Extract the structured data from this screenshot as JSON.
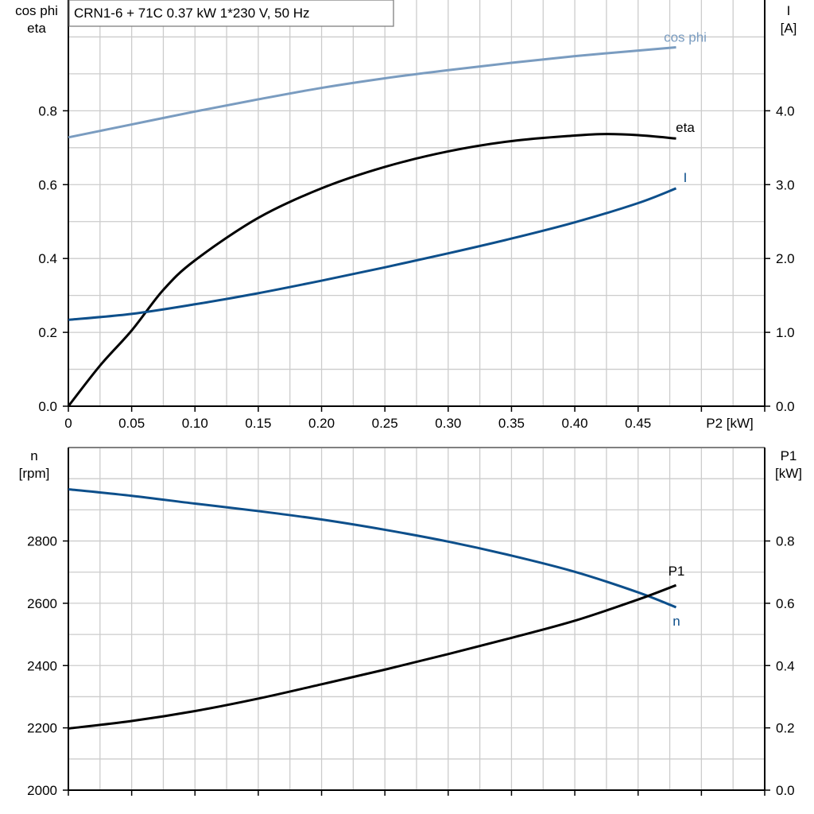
{
  "chart_data": [
    {
      "type": "line",
      "title": "CRN1-6 + 71C   0.37 kW   1*230 V, 50 Hz",
      "xlabel": "P2 [kW]",
      "ylabel_left": [
        "cos phi",
        "eta"
      ],
      "ylabel_right": [
        "I",
        "[A]"
      ],
      "xlim": [
        0,
        0.55
      ],
      "ylim_left": [
        0,
        1.1
      ],
      "ylim_right": [
        0,
        5.5
      ],
      "x_ticks": [
        "0",
        "0.05",
        "0.10",
        "0.15",
        "0.20",
        "0.25",
        "0.30",
        "0.35",
        "0.40",
        "0.45"
      ],
      "y_ticks_left": [
        "0.0",
        "0.2",
        "0.4",
        "0.6",
        "0.8"
      ],
      "y_ticks_right": [
        "0.0",
        "1.0",
        "2.0",
        "3.0",
        "4.0"
      ],
      "grid": true,
      "series": [
        {
          "name": "cos phi",
          "axis": "left",
          "color": "#7a9cc0",
          "x": [
            0,
            0.05,
            0.1,
            0.15,
            0.2,
            0.25,
            0.3,
            0.35,
            0.4,
            0.45,
            0.48
          ],
          "y": [
            0.728,
            0.763,
            0.798,
            0.831,
            0.862,
            0.888,
            0.91,
            0.93,
            0.948,
            0.963,
            0.972
          ]
        },
        {
          "name": "eta",
          "axis": "left",
          "color": "#000000",
          "x": [
            0,
            0.025,
            0.05,
            0.075,
            0.1,
            0.15,
            0.2,
            0.25,
            0.3,
            0.35,
            0.4,
            0.425,
            0.45,
            0.48
          ],
          "y": [
            0,
            0.11,
            0.205,
            0.315,
            0.395,
            0.51,
            0.59,
            0.648,
            0.69,
            0.718,
            0.733,
            0.737,
            0.734,
            0.725
          ]
        },
        {
          "name": "I",
          "axis": "right",
          "color": "#0d4f8b",
          "x": [
            0,
            0.05,
            0.1,
            0.15,
            0.2,
            0.25,
            0.3,
            0.35,
            0.4,
            0.45,
            0.48
          ],
          "y": [
            1.17,
            1.25,
            1.38,
            1.53,
            1.7,
            1.88,
            2.07,
            2.27,
            2.49,
            2.75,
            2.95
          ]
        }
      ]
    },
    {
      "type": "line",
      "xlabel": "",
      "ylabel_left": [
        "n",
        "[rpm]"
      ],
      "ylabel_right": [
        "P1",
        "[kW]"
      ],
      "xlim": [
        0,
        0.55
      ],
      "ylim_left": [
        2000,
        3100
      ],
      "ylim_right": [
        0,
        1.1
      ],
      "y_ticks_left": [
        "2000",
        "2200",
        "2400",
        "2600",
        "2800"
      ],
      "y_ticks_right": [
        "0.0",
        "0.2",
        "0.4",
        "0.6",
        "0.8"
      ],
      "grid": true,
      "series": [
        {
          "name": "n",
          "axis": "left",
          "color": "#0d4f8b",
          "x": [
            0,
            0.05,
            0.1,
            0.15,
            0.2,
            0.25,
            0.3,
            0.35,
            0.4,
            0.45,
            0.48
          ],
          "y": [
            2966,
            2945,
            2920,
            2896,
            2869,
            2836,
            2798,
            2753,
            2701,
            2635,
            2587
          ]
        },
        {
          "name": "P1",
          "axis": "right",
          "color": "#000000",
          "x": [
            0,
            0.05,
            0.1,
            0.15,
            0.2,
            0.25,
            0.3,
            0.35,
            0.4,
            0.45,
            0.48
          ],
          "y": [
            0.198,
            0.222,
            0.254,
            0.294,
            0.34,
            0.387,
            0.437,
            0.489,
            0.544,
            0.612,
            0.658
          ]
        }
      ]
    }
  ]
}
